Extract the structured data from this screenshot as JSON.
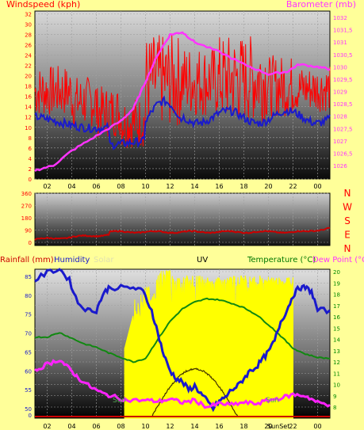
{
  "x_ticks": [
    "02",
    "04",
    "06",
    "08",
    "10",
    "12",
    "14",
    "16",
    "18",
    "20",
    "22",
    "00"
  ],
  "panel1": {
    "title_left": "Windspeed (kph)",
    "title_right": "Barometer (mb)",
    "colors": {
      "wind": "#ff0000",
      "gust_avg": "#1a1acc",
      "baro": "#ff33ff",
      "left_axis": "#ff0000",
      "right_axis": "#ff33ff"
    },
    "left_ticks": [
      "0",
      "2",
      "4",
      "6",
      "8",
      "10",
      "12",
      "14",
      "16",
      "18",
      "20",
      "22",
      "24",
      "26",
      "28",
      "30",
      "32"
    ],
    "right_ticks": [
      "1026",
      "1026,5",
      "1027",
      "1027,5",
      "1028",
      "1028,5",
      "1029",
      "1029,5",
      "1030",
      "1030,5",
      "1031",
      "1031,5",
      "1032"
    ]
  },
  "panel2": {
    "ticks": [
      "0",
      "90",
      "180",
      "270",
      "360"
    ],
    "compass": [
      "N",
      "W",
      "S",
      "E",
      "N"
    ],
    "colors": {
      "dir": "#cc0000",
      "compass": "#ff0000"
    }
  },
  "panel3": {
    "legend": [
      {
        "text": "Rainfall (mm)",
        "color": "#cc0000"
      },
      {
        "text": "Humidity",
        "color": "#1a1acc"
      },
      {
        "text": "Solar",
        "color": "#e0e0b0"
      },
      {
        "text": "UV",
        "color": "#000000"
      },
      {
        "text": "Temperature (°C)",
        "color": "#007700"
      },
      {
        "text": "Dew Point (°C)",
        "color": "#ff33ff"
      }
    ],
    "left_ticks": [
      "0",
      "50",
      "55",
      "60",
      "65",
      "70",
      "75",
      "80",
      "85"
    ],
    "right_ticks": [
      "8",
      "9",
      "10",
      "11",
      "12",
      "13",
      "14",
      "15",
      "16",
      "17",
      "18",
      "19",
      "20"
    ],
    "marker_left": "Sun",
    "marker_right": "Sun",
    "bottom_markers": [
      "SunSet"
    ],
    "colors": {
      "humidity": "#1a1acc",
      "temperature": "#118811",
      "dewpoint": "#ff22ff",
      "solar": "#ffff00",
      "uv": "#443300",
      "left_axis": "#1a1acc",
      "right_axis": "#008800"
    }
  }
}
